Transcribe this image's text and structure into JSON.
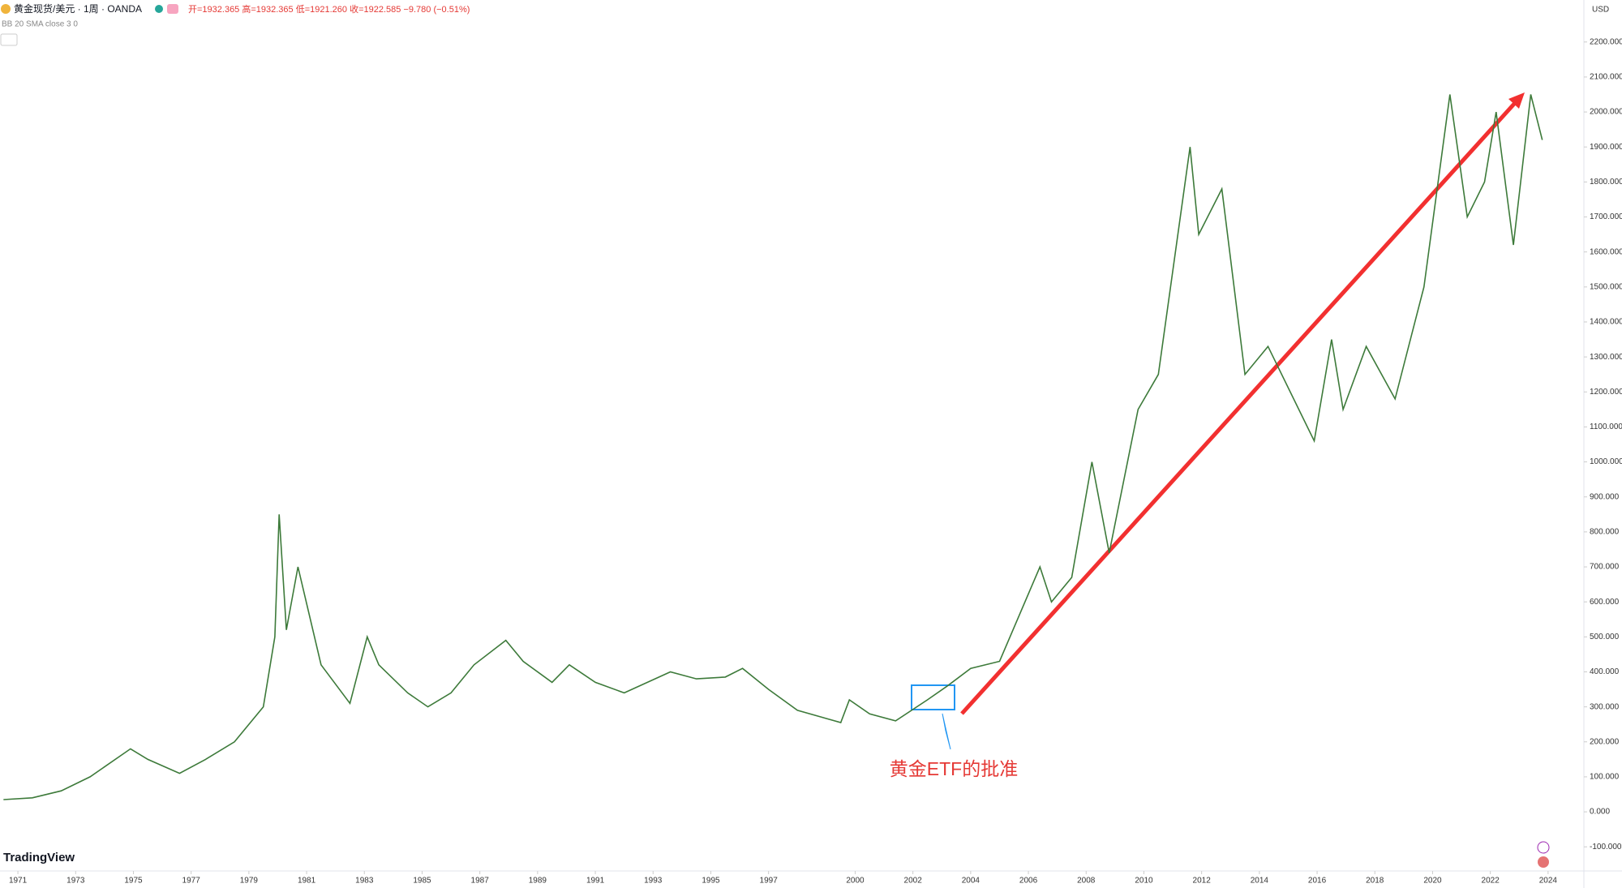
{
  "header": {
    "symbol": "黄金现货/美元 · 1周 · OANDA",
    "ohlc": "开=1932.365 高=1932.365 低=1921.260 收=1922.585 −9.780 (−0.51%)",
    "indicator": "BB 20 SMA close 3 0",
    "currency": "USD",
    "brand": "TradingView"
  },
  "chart_data": {
    "type": "line",
    "annotation": "黄金ETF的批准",
    "color": "#3d7a3a",
    "x": [
      1970.5,
      1971.5,
      1972.5,
      1973.5,
      1974.9,
      1975.5,
      1976.6,
      1977.5,
      1978.5,
      1979.5,
      1979.9,
      1980.05,
      1980.3,
      1980.7,
      1981.5,
      1982.5,
      1983.1,
      1983.5,
      1984.5,
      1985.2,
      1986,
      1986.8,
      1987.9,
      1988.5,
      1989.5,
      1990.1,
      1991,
      1992,
      1993.6,
      1994.5,
      1995.5,
      1996.1,
      1997,
      1998,
      1999.5,
      1999.8,
      2000.5,
      2001.4,
      2002.5,
      2003.2,
      2004,
      2005,
      2006.4,
      2006.8,
      2007.5,
      2008.2,
      2008.8,
      2009.8,
      2010.5,
      2011.6,
      2011.9,
      2012.7,
      2013.5,
      2014.3,
      2015.9,
      2016.5,
      2016.9,
      2017.7,
      2018.7,
      2019.7,
      2020.6,
      2021.2,
      2021.8,
      2022.2,
      2022.8,
      2023.4,
      2023.8
    ],
    "values": [
      35,
      40,
      60,
      100,
      180,
      150,
      110,
      150,
      200,
      300,
      500,
      850,
      520,
      700,
      420,
      310,
      500,
      420,
      340,
      300,
      340,
      420,
      490,
      430,
      370,
      420,
      370,
      340,
      400,
      380,
      385,
      410,
      350,
      290,
      255,
      320,
      280,
      260,
      320,
      360,
      410,
      430,
      700,
      600,
      670,
      1000,
      740,
      1150,
      1250,
      1900,
      1650,
      1780,
      1250,
      1330,
      1060,
      1350,
      1150,
      1330,
      1180,
      1500,
      2050,
      1700,
      1800,
      2000,
      1620,
      2050,
      1920
    ],
    "xlim": [
      1970.38,
      2025.24
    ],
    "xticks": [
      1971,
      1973,
      1975,
      1977,
      1979,
      1981,
      1983,
      1985,
      1987,
      1989,
      1991,
      1993,
      1995,
      1997,
      2000,
      2002,
      2004,
      2006,
      2008,
      2010,
      2012,
      2014,
      2016,
      2018,
      2020,
      2022,
      2024
    ],
    "ylim": [
      -169,
      2320
    ],
    "yticks": [
      {
        "value": -100,
        "label": "-100.000"
      },
      {
        "value": 0,
        "label": "0.000"
      },
      {
        "value": 100,
        "label": "100.000"
      },
      {
        "value": 200,
        "label": "200.000"
      },
      {
        "value": 300,
        "label": "300.000"
      },
      {
        "value": 400,
        "label": "400.000"
      },
      {
        "value": 500,
        "label": "500.000"
      },
      {
        "value": 600,
        "label": "600.000"
      },
      {
        "value": 700,
        "label": "700.000"
      },
      {
        "value": 800,
        "label": "800.000"
      },
      {
        "value": 900,
        "label": "900.000"
      },
      {
        "value": 1000,
        "label": "1000.000"
      },
      {
        "value": 1100,
        "label": "1100.000"
      },
      {
        "value": 1200,
        "label": "1200.000"
      },
      {
        "value": 1300,
        "label": "1300.000"
      },
      {
        "value": 1400,
        "label": "1400.000"
      },
      {
        "value": 1500,
        "label": "1500.000"
      },
      {
        "value": 1600,
        "label": "1600.000"
      },
      {
        "value": 1700,
        "label": "1700.000"
      },
      {
        "value": 1800,
        "label": "1800.000"
      },
      {
        "value": 1900,
        "label": "1900.000"
      },
      {
        "value": 2000,
        "label": "2000.000"
      },
      {
        "value": 2100,
        "label": "2100.000"
      },
      {
        "value": 2200,
        "label": "2200.000"
      }
    ]
  }
}
